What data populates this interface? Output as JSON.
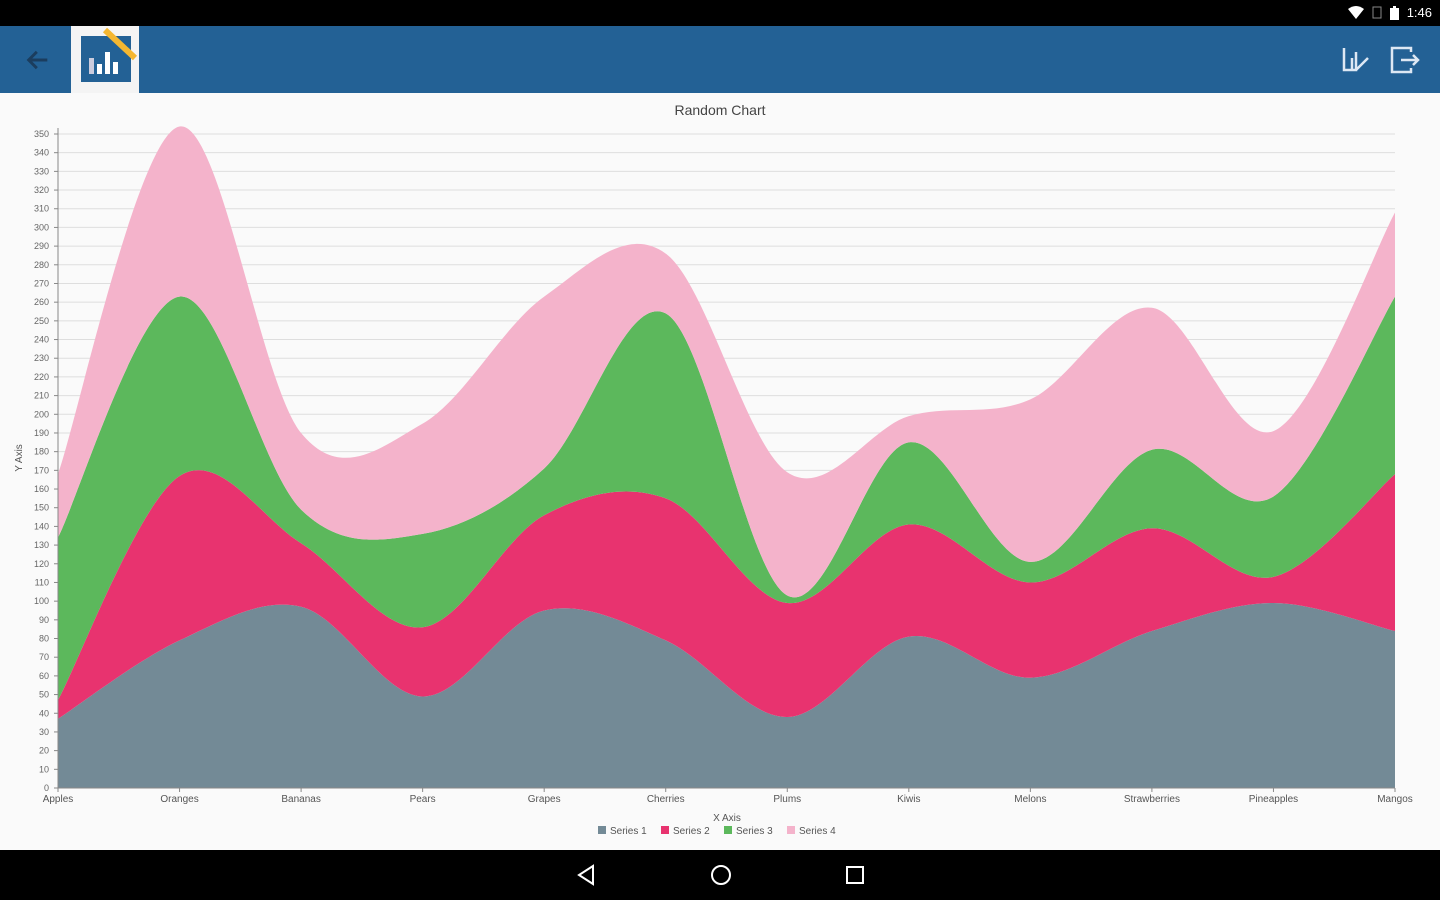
{
  "status_bar": {
    "time": "1:46"
  },
  "app_bar": {
    "back_icon": "arrow-left-icon",
    "logo": "chart-app-logo",
    "actions": [
      "chart-edit-icon",
      "exit-icon"
    ]
  },
  "colors": {
    "header": "#236195",
    "series": [
      "#738a96",
      "#e8336f",
      "#5cb85c",
      "#f4b3cb"
    ]
  },
  "chart_data": {
    "type": "area",
    "stacked": true,
    "smooth": true,
    "title": "Random Chart",
    "xlabel": "X Axis",
    "ylabel": "Y Axis",
    "ylim": [
      0,
      350
    ],
    "ytick_step": 10,
    "grid": true,
    "legend_position": "bottom",
    "categories": [
      "Apples",
      "Oranges",
      "Bananas",
      "Pears",
      "Grapes",
      "Cherries",
      "Plums",
      "Kiwis",
      "Melons",
      "Strawberries",
      "Pineapples",
      "Mangos"
    ],
    "series": [
      {
        "name": "Series 1",
        "values": [
          37,
          79,
          97,
          49,
          95,
          79,
          38,
          81,
          59,
          84,
          99,
          84
        ]
      },
      {
        "name": "Series 2",
        "values": [
          10,
          88,
          34,
          37,
          51,
          76,
          61,
          60,
          51,
          55,
          14,
          84
        ]
      },
      {
        "name": "Series 3",
        "values": [
          87,
          96,
          18,
          50,
          25,
          99,
          4,
          44,
          11,
          42,
          43,
          95
        ]
      },
      {
        "name": "Series 4",
        "values": [
          34,
          91,
          41,
          59,
          92,
          32,
          66,
          14,
          87,
          76,
          35,
          45
        ]
      }
    ]
  }
}
